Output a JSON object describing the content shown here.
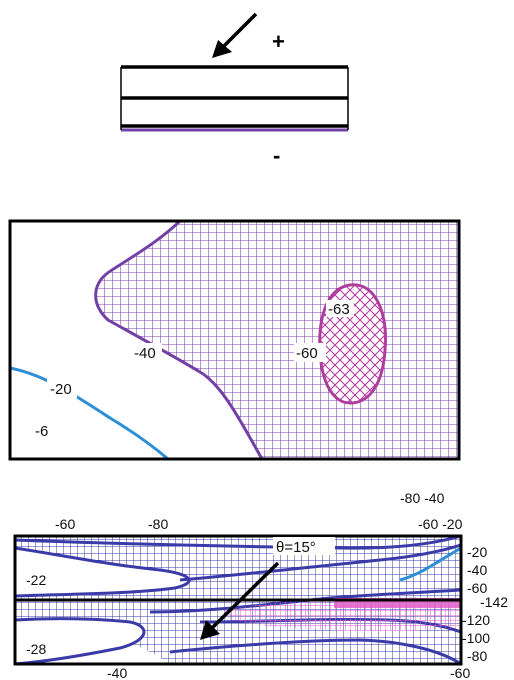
{
  "colors": {
    "purple": "#7340a8",
    "blue": "#2e8fd6",
    "magenta": "#b03ca0",
    "navy": "#3a3aa8",
    "pink": "#e060c8",
    "black": "#000000"
  },
  "icons": [
    "arrow-icon"
  ],
  "top_schematic": {
    "plus_sign": "+",
    "minus_sign": "-"
  },
  "middle_plot": {
    "labels": [
      "-63",
      "-60",
      "-40",
      "-20",
      "-6"
    ]
  },
  "bottom_plot": {
    "angle_label": "θ=15°",
    "top_labels": [
      "-60",
      "-80",
      "-80 -40",
      "-60 -20"
    ],
    "left_labels": [
      "-22",
      "-28"
    ],
    "right_labels": [
      "-20",
      "-40",
      "-60",
      "-142",
      "-120",
      "-100",
      "-80"
    ],
    "bottom_labels": [
      "-40",
      "-60"
    ]
  }
}
